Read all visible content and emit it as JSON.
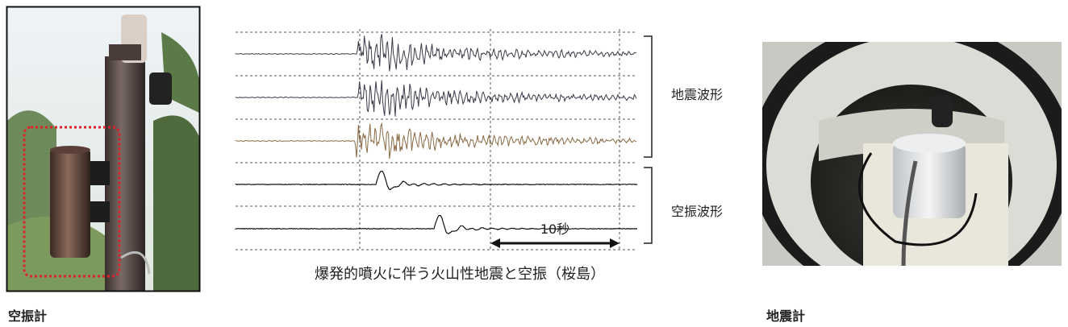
{
  "left_photo": {
    "caption": "空振計"
  },
  "waveform_figure": {
    "seismic_label": "地震波形",
    "infrasound_label": "空振波形",
    "scale_label": "10秒",
    "caption": "爆発的噴火に伴う火山性地震と空振（桜島）"
  },
  "right_photo": {
    "caption": "地震計"
  }
}
